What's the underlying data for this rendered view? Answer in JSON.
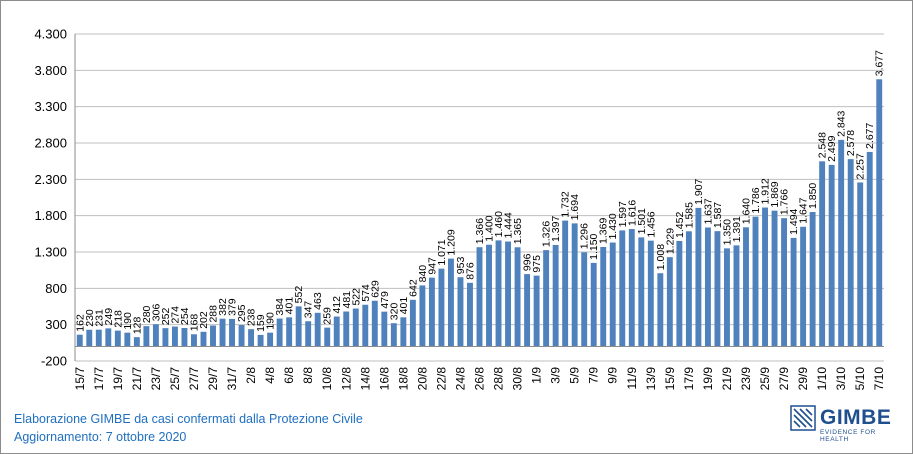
{
  "footer": {
    "line1": "Elaborazione GIMBE da casi confermati dalla Protezione Civile",
    "line2": "Aggiornamento: 7 ottobre 2020"
  },
  "logo": {
    "name": "GIMBE",
    "tagline": "EVIDENCE FOR HEALTH"
  },
  "colors": {
    "bar": "#4f81bd",
    "grid": "#bfbfbf",
    "footer": "#1f6fbf"
  },
  "chart_data": {
    "type": "bar",
    "title": "",
    "xlabel": "",
    "ylabel": "",
    "ylim": [
      -200,
      4300
    ],
    "yticks": [
      -200,
      300,
      800,
      1300,
      1800,
      2300,
      2800,
      3300,
      3800,
      4300
    ],
    "ytick_labels": [
      "-200",
      "300",
      "800",
      "1.300",
      "1.800",
      "2.300",
      "2.800",
      "3.300",
      "3.800",
      "4.300"
    ],
    "grid": "horizontal",
    "xtick_labels": [
      "15/7",
      "17/7",
      "19/7",
      "21/7",
      "23/7",
      "25/7",
      "27/7",
      "29/7",
      "31/7",
      "2/8",
      "4/8",
      "6/8",
      "8/8",
      "10/8",
      "12/8",
      "14/8",
      "16/8",
      "18/8",
      "20/8",
      "22/8",
      "24/8",
      "26/8",
      "28/8",
      "30/8",
      "1/9",
      "3/9",
      "5/9",
      "7/9",
      "9/9",
      "11/9",
      "13/9",
      "15/9",
      "17/9",
      "19/9",
      "21/9",
      "23/9",
      "25/9",
      "27/9",
      "29/9",
      "1/10",
      "3/10",
      "5/10",
      "7/10"
    ],
    "categories": [
      "15/7",
      "16/7",
      "17/7",
      "18/7",
      "19/7",
      "20/7",
      "21/7",
      "22/7",
      "23/7",
      "24/7",
      "25/7",
      "26/7",
      "27/7",
      "28/7",
      "29/7",
      "30/7",
      "31/7",
      "1/8",
      "2/8",
      "3/8",
      "4/8",
      "5/8",
      "6/8",
      "7/8",
      "8/8",
      "9/8",
      "10/8",
      "11/8",
      "12/8",
      "13/8",
      "14/8",
      "15/8",
      "16/8",
      "17/8",
      "18/8",
      "19/8",
      "20/8",
      "21/8",
      "22/8",
      "23/8",
      "24/8",
      "25/8",
      "26/8",
      "27/8",
      "28/8",
      "29/8",
      "30/8",
      "31/8",
      "1/9",
      "2/9",
      "3/9",
      "4/9",
      "5/9",
      "6/9",
      "7/9",
      "8/9",
      "9/9",
      "10/9",
      "11/9",
      "12/9",
      "13/9",
      "14/9",
      "15/9",
      "16/9",
      "17/9",
      "18/9",
      "19/9",
      "20/9",
      "21/9",
      "22/9",
      "23/9",
      "24/9",
      "25/9",
      "26/9",
      "27/9",
      "28/9",
      "29/9",
      "30/9",
      "1/10",
      "2/10",
      "3/10",
      "4/10",
      "5/10",
      "6/10",
      "7/10"
    ],
    "values": [
      162,
      230,
      231,
      249,
      218,
      190,
      128,
      280,
      306,
      252,
      274,
      254,
      168,
      202,
      288,
      382,
      379,
      295,
      238,
      159,
      190,
      384,
      401,
      552,
      347,
      463,
      259,
      412,
      481,
      522,
      574,
      629,
      479,
      320,
      401,
      642,
      840,
      947,
      1071,
      1209,
      953,
      876,
      1366,
      1400,
      1460,
      1444,
      1365,
      996,
      975,
      1326,
      1397,
      1732,
      1694,
      1296,
      1150,
      1369,
      1430,
      1597,
      1616,
      1501,
      1456,
      1008,
      1229,
      1452,
      1585,
      1907,
      1637,
      1587,
      1350,
      1391,
      1640,
      1786,
      1912,
      1869,
      1766,
      1494,
      1647,
      1850,
      2548,
      2499,
      2843,
      2578,
      2257,
      2677,
      3677
    ],
    "labels": [
      "162",
      "230",
      "231",
      "249",
      "218",
      "190",
      "128",
      "280",
      "306",
      "252",
      "274",
      "254",
      "168",
      "202",
      "288",
      "382",
      "379",
      "295",
      "238",
      "159",
      "190",
      "384",
      "401",
      "552",
      "347",
      "463",
      "259",
      "412",
      "481",
      "522",
      "574",
      "629",
      "479",
      "320",
      "401",
      "642",
      "840",
      "947",
      "1.071",
      "1.209",
      "953",
      "876",
      "1.366",
      "1.400",
      "1.460",
      "1.444",
      "1.365",
      "996",
      "975",
      "1.326",
      "1.397",
      "1.732",
      "1.694",
      "1.296",
      "1.150",
      "1.369",
      "1.430",
      "1.597",
      "1.616",
      "1.501",
      "1.456",
      "1.008",
      "1.229",
      "1.452",
      "1.585",
      "1.907",
      "1.637",
      "1.587",
      "1.350",
      "1.391",
      "1.640",
      "1.786",
      "1.912",
      "1.869",
      "1.766",
      "1.494",
      "1.647",
      "1.850",
      "2.548",
      "2.499",
      "2.843",
      "2.578",
      "2.257",
      "2.677",
      "3.677"
    ]
  }
}
